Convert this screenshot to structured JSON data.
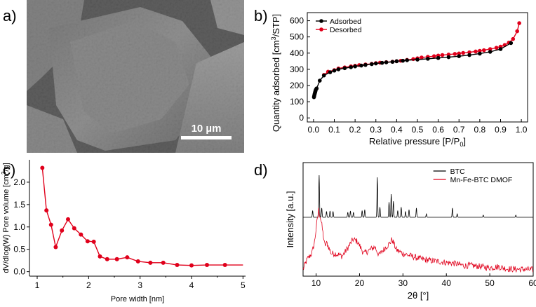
{
  "panel_labels": {
    "a": "a)",
    "b": "b)",
    "c": "c)",
    "d": "d)"
  },
  "sem_image": {
    "description_icon": "sem-micrograph",
    "scale_bar_label": "10 µm"
  },
  "colors": {
    "red": "#e0001b",
    "black": "#000000"
  },
  "chart_data": [
    {
      "id": "b",
      "type": "line",
      "title": "",
      "xlabel": "Relative pressure [P/P",
      "xlabel_sub": "0",
      "xlabel_end": "]",
      "ylabel": "Quantity adsorbed [cm",
      "ylabel_sup": "3",
      "ylabel_end": "/STP]",
      "xlim": [
        -0.03,
        1.03
      ],
      "ylim": [
        -25,
        650
      ],
      "xticks": [
        "0.0",
        "0.1",
        "0.2",
        "0.3",
        "0.4",
        "0.5",
        "0.6",
        "0.7",
        "0.8",
        "0.9",
        "1.0"
      ],
      "xtick_values": [
        0,
        0.1,
        0.2,
        0.3,
        0.4,
        0.5,
        0.6,
        0.7,
        0.8,
        0.9,
        1.0
      ],
      "yticks": [
        "0",
        "100",
        "200",
        "300",
        "400",
        "500",
        "600"
      ],
      "ytick_values": [
        0,
        100,
        200,
        300,
        400,
        500,
        600
      ],
      "legend": {
        "position": "top-left",
        "entries": [
          "Adsorbed",
          "Desorbed"
        ]
      },
      "series": [
        {
          "name": "Adsorbed",
          "color": "#000000",
          "x": [
            0.002,
            0.003,
            0.004,
            0.005,
            0.006,
            0.007,
            0.008,
            0.009,
            0.01,
            0.012,
            0.015,
            0.03,
            0.05,
            0.08,
            0.1,
            0.12,
            0.15,
            0.18,
            0.2,
            0.23,
            0.25,
            0.28,
            0.3,
            0.33,
            0.35,
            0.38,
            0.4,
            0.43,
            0.45,
            0.5,
            0.55,
            0.6,
            0.65,
            0.7,
            0.75,
            0.8,
            0.85,
            0.9,
            0.95
          ],
          "y": [
            128,
            134,
            140,
            146,
            150,
            155,
            160,
            165,
            170,
            176,
            182,
            230,
            262,
            282,
            292,
            300,
            307,
            313,
            318,
            323,
            327,
            332,
            336,
            340,
            343,
            346,
            350,
            353,
            356,
            360,
            365,
            370,
            375,
            381,
            388,
            397,
            408,
            425,
            462
          ]
        },
        {
          "name": "Desorbed",
          "color": "#e0001b",
          "x": [
            0.99,
            0.98,
            0.96,
            0.94,
            0.92,
            0.9,
            0.88,
            0.85,
            0.82,
            0.8,
            0.78,
            0.75,
            0.72,
            0.7,
            0.68,
            0.65,
            0.62,
            0.6,
            0.58,
            0.55,
            0.52,
            0.5,
            0.48,
            0.45,
            0.42,
            0.4,
            0.38,
            0.35,
            0.32,
            0.3,
            0.28,
            0.25,
            0.22,
            0.2,
            0.18,
            0.15,
            0.12,
            0.1,
            0.07,
            0.05
          ],
          "y": [
            585,
            535,
            487,
            465,
            450,
            440,
            433,
            425,
            418,
            414,
            410,
            405,
            401,
            398,
            395,
            391,
            388,
            385,
            381,
            377,
            373,
            368,
            363,
            358,
            353,
            350,
            347,
            344,
            341,
            338,
            334,
            330,
            326,
            322,
            318,
            312,
            305,
            295,
            285,
            265
          ]
        }
      ]
    },
    {
      "id": "c",
      "type": "line",
      "title": "",
      "xlabel": "Pore width [nm]",
      "ylabel": "dV/dlog(W) Pore volume [cm",
      "ylabel_sup": "3",
      "ylabel_end": "/g]",
      "xlim": [
        0.85,
        5.05
      ],
      "ylim": [
        -0.1,
        2.5
      ],
      "xticks": [
        "1",
        "2",
        "3",
        "4",
        "5"
      ],
      "xtick_values": [
        1,
        2,
        3,
        4,
        5
      ],
      "yticks": [
        "0.0",
        "0.5",
        "1.0",
        "1.5",
        "2.0"
      ],
      "ytick_values": [
        0,
        0.5,
        1.0,
        1.5,
        2.0
      ],
      "series": [
        {
          "name": "Pore volume",
          "color": "#e0001b",
          "x": [
            1.1,
            1.18,
            1.27,
            1.36,
            1.48,
            1.6,
            1.72,
            1.85,
            1.98,
            2.1,
            2.22,
            2.36,
            2.55,
            2.75,
            2.96,
            3.2,
            3.45,
            3.72,
            4.0,
            4.3,
            4.65,
            5.0
          ],
          "y": [
            2.32,
            1.37,
            1.05,
            0.55,
            0.92,
            1.17,
            0.97,
            0.83,
            0.68,
            0.67,
            0.34,
            0.28,
            0.28,
            0.32,
            0.23,
            0.2,
            0.2,
            0.15,
            0.14,
            0.15,
            0.15,
            0.15
          ]
        }
      ]
    },
    {
      "id": "d",
      "type": "line",
      "title": "",
      "xlabel": "2θ [°]",
      "ylabel": "Intensity [a.u.]",
      "xlim": [
        7,
        60
      ],
      "xticks": [
        "10",
        "20",
        "30",
        "40",
        "50",
        "60"
      ],
      "xtick_values": [
        10,
        20,
        30,
        40,
        50,
        60
      ],
      "legend": {
        "position": "top-right",
        "entries": [
          "BTC",
          "Mn-Fe-BTC DMOF"
        ]
      },
      "series": [
        {
          "name": "BTC",
          "color": "#000000",
          "baseline": 0,
          "peaks": [
            [
              9.2,
              0.16
            ],
            [
              10.7,
              1.0
            ],
            [
              11.3,
              0.22
            ],
            [
              12.4,
              0.14
            ],
            [
              13.2,
              0.15
            ],
            [
              13.9,
              0.14
            ],
            [
              17.3,
              0.12
            ],
            [
              17.9,
              0.15
            ],
            [
              18.6,
              0.12
            ],
            [
              20.6,
              0.16
            ],
            [
              21.2,
              0.18
            ],
            [
              24.1,
              0.95
            ],
            [
              24.7,
              0.24
            ],
            [
              26.8,
              0.36
            ],
            [
              27.3,
              0.55
            ],
            [
              27.8,
              0.38
            ],
            [
              28.8,
              0.16
            ],
            [
              29.6,
              0.24
            ],
            [
              30.6,
              0.14
            ],
            [
              31.4,
              0.18
            ],
            [
              33.1,
              0.22
            ],
            [
              35.4,
              0.08
            ],
            [
              41.4,
              0.22
            ],
            [
              42.5,
              0.08
            ],
            [
              48.5,
              0.05
            ],
            [
              56.0,
              0.05
            ]
          ]
        },
        {
          "name": "Mn-Fe-BTC DMOF",
          "color": "#e0001b",
          "x": [
            7,
            8,
            9,
            9.6,
            10.2,
            10.6,
            11.2,
            12,
            12.5,
            13.5,
            14.5,
            16,
            17,
            18.5,
            19.5,
            21,
            22,
            23.5,
            24.5,
            25.5,
            27,
            27.5,
            28.5,
            30,
            32,
            34,
            36,
            38,
            40,
            42,
            44,
            46,
            48,
            50,
            52,
            54,
            56,
            58,
            60
          ],
          "y": [
            0.05,
            0.25,
            0.35,
            0.55,
            0.95,
            1.18,
            0.95,
            0.5,
            0.55,
            0.35,
            0.35,
            0.3,
            0.42,
            0.62,
            0.58,
            0.35,
            0.4,
            0.48,
            0.32,
            0.42,
            0.55,
            0.62,
            0.42,
            0.35,
            0.3,
            0.25,
            0.22,
            0.2,
            0.18,
            0.16,
            0.12,
            0.12,
            0.1,
            0.08,
            0.1,
            0.06,
            0.05,
            0.05,
            0.04
          ]
        }
      ]
    }
  ]
}
